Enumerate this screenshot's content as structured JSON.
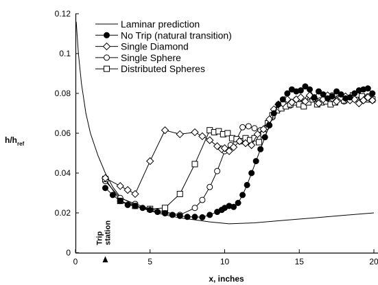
{
  "chart_data": {
    "type": "scatter",
    "title": "",
    "xlabel": "x, inches",
    "ylabel_main": "h/h",
    "ylabel_sub": "ref",
    "xlim": [
      0,
      20
    ],
    "ylim": [
      0,
      0.12
    ],
    "xticks": [
      0,
      5,
      10,
      15,
      20
    ],
    "yticks": [
      0,
      0.02,
      0.04,
      0.06,
      0.08,
      0.1,
      0.12
    ],
    "xtick_labels": [
      "0",
      "5",
      "10",
      "15",
      "20"
    ],
    "ytick_labels": [
      "0",
      "0.02",
      "0.04",
      "0.06",
      "0.08",
      "0.1",
      "0.12"
    ],
    "grid": false,
    "legend_position": "top-left",
    "annotation": {
      "lines": [
        "Trip",
        "station"
      ],
      "x": 2
    },
    "series": [
      {
        "name": "Laminar prediction",
        "marker": "none",
        "points": [
          [
            0.05,
            0.116
          ],
          [
            0.2,
            0.1
          ],
          [
            0.4,
            0.085
          ],
          [
            0.7,
            0.07
          ],
          [
            1.0,
            0.06
          ],
          [
            1.5,
            0.049
          ],
          [
            2.0,
            0.04
          ],
          [
            2.5,
            0.033
          ],
          [
            3.0,
            0.028
          ],
          [
            4.0,
            0.0235
          ],
          [
            5.0,
            0.021
          ],
          [
            6.0,
            0.019
          ],
          [
            7.0,
            0.0175
          ],
          [
            8.0,
            0.0165
          ],
          [
            9.0,
            0.0155
          ],
          [
            10.3,
            0.0145
          ],
          [
            12.0,
            0.015
          ],
          [
            14.0,
            0.0163
          ],
          [
            16.0,
            0.0175
          ],
          [
            18.0,
            0.0188
          ],
          [
            20.0,
            0.02
          ]
        ]
      },
      {
        "name": "No Trip (natural transition)",
        "marker": "filled-circle",
        "points": [
          [
            2.0,
            0.0325
          ],
          [
            2.5,
            0.029
          ],
          [
            3.0,
            0.026
          ],
          [
            3.5,
            0.024
          ],
          [
            4.0,
            0.0235
          ],
          [
            4.5,
            0.0225
          ],
          [
            5.0,
            0.0215
          ],
          [
            5.5,
            0.0205
          ],
          [
            6.0,
            0.0198
          ],
          [
            6.5,
            0.019
          ],
          [
            7.0,
            0.0185
          ],
          [
            7.5,
            0.018
          ],
          [
            8.0,
            0.018
          ],
          [
            8.5,
            0.0178
          ],
          [
            9.0,
            0.019
          ],
          [
            9.5,
            0.0205
          ],
          [
            9.8,
            0.0215
          ],
          [
            10.0,
            0.0225
          ],
          [
            10.3,
            0.0235
          ],
          [
            10.6,
            0.023
          ],
          [
            10.9,
            0.025
          ],
          [
            11.2,
            0.029
          ],
          [
            11.5,
            0.034
          ],
          [
            11.8,
            0.04
          ],
          [
            12.1,
            0.046
          ],
          [
            12.4,
            0.052
          ],
          [
            12.7,
            0.058
          ],
          [
            13.0,
            0.064
          ],
          [
            13.3,
            0.07
          ],
          [
            13.6,
            0.0745
          ],
          [
            13.9,
            0.077
          ],
          [
            14.2,
            0.08
          ],
          [
            14.5,
            0.082
          ],
          [
            14.8,
            0.081
          ],
          [
            15.1,
            0.0815
          ],
          [
            15.4,
            0.0835
          ],
          [
            15.7,
            0.082
          ],
          [
            16.0,
            0.078
          ],
          [
            16.3,
            0.081
          ],
          [
            16.6,
            0.0795
          ],
          [
            16.9,
            0.0775
          ],
          [
            17.2,
            0.0785
          ],
          [
            17.5,
            0.081
          ],
          [
            17.8,
            0.0795
          ],
          [
            18.1,
            0.0775
          ],
          [
            18.4,
            0.078
          ],
          [
            18.7,
            0.08
          ],
          [
            19.0,
            0.0815
          ],
          [
            19.3,
            0.082
          ],
          [
            19.6,
            0.0825
          ],
          [
            19.9,
            0.08
          ]
        ]
      },
      {
        "name": "Single Diamond",
        "marker": "open-diamond",
        "points": [
          [
            2.0,
            0.0375
          ],
          [
            3.0,
            0.0335
          ],
          [
            3.5,
            0.0315
          ],
          [
            4.0,
            0.0295
          ],
          [
            5.0,
            0.046
          ],
          [
            6.0,
            0.0615
          ],
          [
            7.0,
            0.0595
          ],
          [
            8.0,
            0.0605
          ],
          [
            8.5,
            0.0585
          ],
          [
            9.0,
            0.0565
          ],
          [
            9.5,
            0.0535
          ],
          [
            9.8,
            0.052
          ],
          [
            10.0,
            0.0525
          ],
          [
            10.3,
            0.051
          ],
          [
            10.6,
            0.053
          ],
          [
            11.0,
            0.056
          ],
          [
            11.4,
            0.055
          ],
          [
            11.8,
            0.054
          ],
          [
            12.2,
            0.0595
          ],
          [
            12.6,
            0.062
          ],
          [
            13.0,
            0.067
          ],
          [
            13.3,
            0.072
          ],
          [
            13.6,
            0.0745
          ],
          [
            13.9,
            0.075
          ],
          [
            14.2,
            0.077
          ],
          [
            14.5,
            0.0755
          ],
          [
            14.8,
            0.077
          ],
          [
            15.1,
            0.078
          ],
          [
            15.4,
            0.076
          ],
          [
            15.7,
            0.079
          ],
          [
            16.0,
            0.0775
          ],
          [
            16.3,
            0.075
          ],
          [
            16.6,
            0.077
          ],
          [
            16.9,
            0.079
          ],
          [
            17.2,
            0.0775
          ],
          [
            17.5,
            0.076
          ],
          [
            17.8,
            0.078
          ],
          [
            18.1,
            0.0785
          ],
          [
            18.4,
            0.0765
          ],
          [
            18.7,
            0.077
          ],
          [
            19.0,
            0.075
          ],
          [
            19.3,
            0.0765
          ],
          [
            19.6,
            0.078
          ],
          [
            19.9,
            0.0765
          ]
        ]
      },
      {
        "name": "Single Sphere",
        "marker": "open-circle",
        "points": [
          [
            2.0,
            0.036
          ],
          [
            3.0,
            0.0275
          ],
          [
            4.0,
            0.0245
          ],
          [
            5.0,
            0.022
          ],
          [
            6.0,
            0.0205
          ],
          [
            7.0,
            0.019
          ],
          [
            8.0,
            0.0225
          ],
          [
            8.5,
            0.0265
          ],
          [
            9.0,
            0.033
          ],
          [
            9.5,
            0.041
          ],
          [
            10.0,
            0.051
          ],
          [
            10.4,
            0.054
          ],
          [
            10.8,
            0.057
          ],
          [
            11.2,
            0.063
          ],
          [
            11.6,
            0.0635
          ],
          [
            12.0,
            0.0625
          ],
          [
            12.4,
            0.0615
          ],
          [
            12.8,
            0.063
          ],
          [
            13.2,
            0.068
          ],
          [
            13.6,
            0.072
          ],
          [
            14.0,
            0.0735
          ],
          [
            14.4,
            0.074
          ],
          [
            14.8,
            0.077
          ],
          [
            15.2,
            0.075
          ],
          [
            15.6,
            0.0775
          ],
          [
            16.0,
            0.078
          ],
          [
            16.4,
            0.0765
          ],
          [
            16.8,
            0.077
          ],
          [
            17.2,
            0.079
          ],
          [
            17.6,
            0.0775
          ],
          [
            18.0,
            0.076
          ],
          [
            18.4,
            0.0775
          ],
          [
            18.8,
            0.078
          ],
          [
            19.2,
            0.077
          ],
          [
            19.6,
            0.0785
          ],
          [
            19.9,
            0.0765
          ]
        ]
      },
      {
        "name": "Distributed Spheres",
        "marker": "open-square",
        "points": [
          [
            2.0,
            0.037
          ],
          [
            3.0,
            0.026
          ],
          [
            4.0,
            0.0235
          ],
          [
            5.0,
            0.022
          ],
          [
            6.0,
            0.0225
          ],
          [
            7.0,
            0.0295
          ],
          [
            8.0,
            0.0445
          ],
          [
            9.0,
            0.0615
          ],
          [
            9.3,
            0.0605
          ],
          [
            9.6,
            0.061
          ],
          [
            9.9,
            0.0595
          ],
          [
            10.2,
            0.06
          ],
          [
            10.5,
            0.0575
          ],
          [
            10.8,
            0.057
          ],
          [
            11.1,
            0.056
          ],
          [
            11.4,
            0.0575
          ],
          [
            11.7,
            0.0565
          ],
          [
            12.0,
            0.0575
          ],
          [
            12.3,
            0.0555
          ],
          [
            12.6,
            0.0595
          ],
          [
            12.9,
            0.065
          ],
          [
            13.2,
            0.069
          ],
          [
            13.5,
            0.0715
          ],
          [
            13.8,
            0.0725
          ],
          [
            14.1,
            0.0735
          ],
          [
            14.4,
            0.0745
          ],
          [
            14.7,
            0.0755
          ],
          [
            15.0,
            0.0745
          ],
          [
            15.3,
            0.0735
          ],
          [
            15.6,
            0.0755
          ],
          [
            15.9,
            0.077
          ],
          [
            16.2,
            0.0745
          ],
          [
            16.5,
            0.0755
          ],
          [
            16.8,
            0.076
          ],
          [
            17.1,
            0.0745
          ],
          [
            17.4,
            0.0755
          ],
          [
            17.7,
            0.0775
          ],
          [
            18.0,
            0.0765
          ],
          [
            18.3,
            0.077
          ],
          [
            18.6,
            0.079
          ],
          [
            18.9,
            0.0795
          ],
          [
            19.2,
            0.0785
          ],
          [
            19.5,
            0.077
          ],
          [
            19.9,
            0.077
          ]
        ]
      }
    ]
  }
}
